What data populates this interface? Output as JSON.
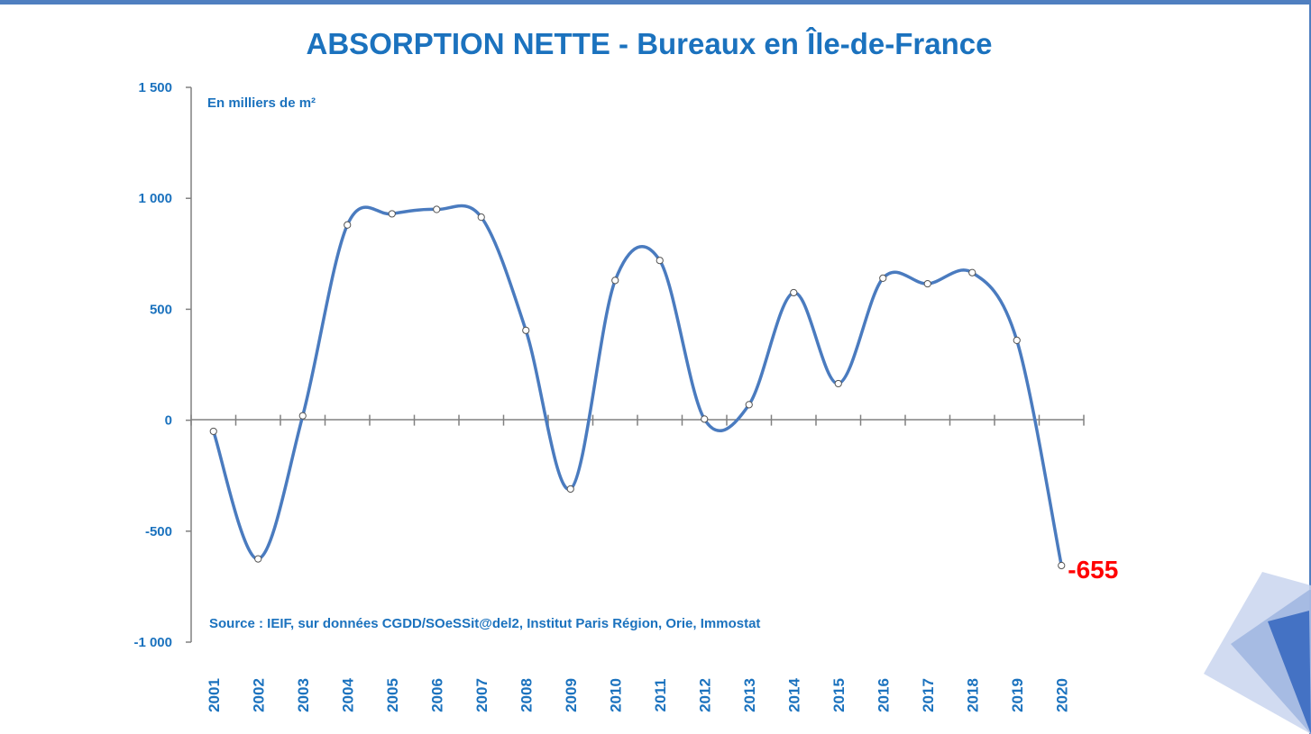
{
  "chart_data": {
    "type": "line",
    "title": "ABSORPTION NETTE - Bureaux en Île-de-France",
    "unit_note": "En milliers de m²",
    "source_note": "Source : IEIF, sur données CGDD/SOeSSit@del2, Institut Paris Région, Orie, Immostat",
    "xlabel": "",
    "ylabel": "",
    "ylim": [
      -1000,
      1500
    ],
    "yticks": [
      1500,
      1000,
      500,
      0,
      -500,
      -1000
    ],
    "ytick_labels": [
      "1 500",
      "1 000",
      "500",
      "0",
      "-500",
      "-1 000"
    ],
    "categories": [
      "2001",
      "2002",
      "2003",
      "2004",
      "2005",
      "2006",
      "2007",
      "2008",
      "2009",
      "2010",
      "2011",
      "2012",
      "2013",
      "2014",
      "2015",
      "2016",
      "2017",
      "2018",
      "2019",
      "2020"
    ],
    "values": [
      -50,
      -625,
      20,
      880,
      930,
      950,
      915,
      405,
      -310,
      630,
      720,
      5,
      70,
      575,
      165,
      640,
      615,
      665,
      360,
      -655
    ],
    "smooth": true,
    "grid": false,
    "line_color": "#4a7bbf",
    "marker_fill": "#ffffff",
    "last_point_label": "-655",
    "last_point_label_color": "#ff0000"
  },
  "decoration": {
    "accent_color": "#4f7fc0",
    "text_color": "#1b72be"
  }
}
